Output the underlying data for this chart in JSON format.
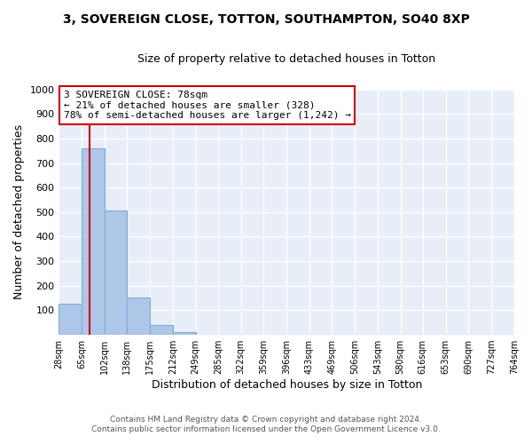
{
  "title": "3, SOVEREIGN CLOSE, TOTTON, SOUTHAMPTON, SO40 8XP",
  "subtitle": "Size of property relative to detached houses in Totton",
  "xlabel": "Distribution of detached houses by size in Totton",
  "ylabel": "Number of detached properties",
  "bar_edges": [
    28,
    65,
    102,
    138,
    175,
    212,
    249,
    285,
    322,
    359,
    396,
    433,
    469,
    506,
    543,
    580,
    616,
    653,
    690,
    727,
    764
  ],
  "bar_heights": [
    128,
    760,
    505,
    152,
    40,
    12,
    0,
    0,
    0,
    0,
    0,
    0,
    0,
    0,
    0,
    0,
    0,
    0,
    0,
    0
  ],
  "bar_color": "#aec6e8",
  "bar_edgecolor": "#7bafd4",
  "property_line_x": 78,
  "property_line_color": "#cc0000",
  "annotation_title": "3 SOVEREIGN CLOSE: 78sqm",
  "annotation_line1": "← 21% of detached houses are smaller (328)",
  "annotation_line2": "78% of semi-detached houses are larger (1,242) →",
  "annotation_box_edgecolor": "#cc0000",
  "annotation_box_facecolor": "#ffffff",
  "ylim": [
    0,
    1000
  ],
  "yticks": [
    0,
    100,
    200,
    300,
    400,
    500,
    600,
    700,
    800,
    900,
    1000
  ],
  "tick_labels": [
    "28sqm",
    "65sqm",
    "102sqm",
    "138sqm",
    "175sqm",
    "212sqm",
    "249sqm",
    "285sqm",
    "322sqm",
    "359sqm",
    "396sqm",
    "433sqm",
    "469sqm",
    "506sqm",
    "543sqm",
    "580sqm",
    "616sqm",
    "653sqm",
    "690sqm",
    "727sqm",
    "764sqm"
  ],
  "footer1": "Contains HM Land Registry data © Crown copyright and database right 2024.",
  "footer2": "Contains public sector information licensed under the Open Government Licence v3.0.",
  "bg_color": "#ffffff",
  "plot_bg_color": "#e8eef8",
  "grid_color": "#ffffff",
  "title_fontsize": 10,
  "subtitle_fontsize": 9
}
